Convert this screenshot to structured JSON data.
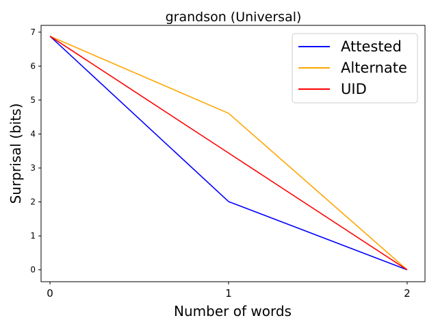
{
  "chart_data": {
    "type": "line",
    "title": "grandson (Universal)",
    "xlabel": "Number of words",
    "ylabel": "Surprisal (bits)",
    "x": [
      0,
      1,
      2
    ],
    "xticks": [
      "0",
      "1",
      "2"
    ],
    "yticks": [
      "0",
      "1",
      "2",
      "3",
      "4",
      "5",
      "6",
      "7"
    ],
    "xlim": [
      -0.05,
      2.1
    ],
    "ylim": [
      -0.35,
      7.2
    ],
    "grid": false,
    "legend_position": "top-right",
    "series": [
      {
        "name": "Attested",
        "color": "#0000ff",
        "values": [
          6.88,
          2.01,
          0.0
        ]
      },
      {
        "name": "Alternate",
        "color": "#ffa500",
        "values": [
          6.88,
          4.61,
          0.0
        ]
      },
      {
        "name": "UID",
        "color": "#ff0000",
        "values": [
          6.88,
          3.44,
          0.0
        ]
      }
    ]
  }
}
